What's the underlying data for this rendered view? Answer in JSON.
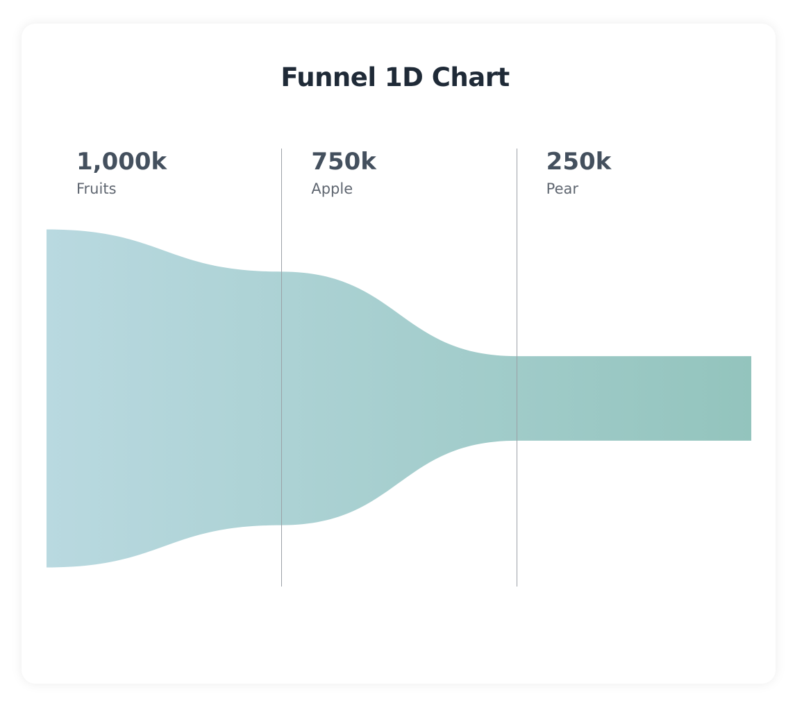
{
  "chart_data": {
    "type": "funnel",
    "title": "Funnel 1D Chart",
    "categories": [
      "Fruits",
      "Apple",
      "Pear"
    ],
    "values": [
      1000,
      750,
      250
    ],
    "value_labels": [
      "1,000k",
      "750k",
      "250k"
    ],
    "unit": "k",
    "gradient": [
      "#b9d9e0",
      "#93c4bd"
    ],
    "divider_color": "#9aa0a6"
  }
}
